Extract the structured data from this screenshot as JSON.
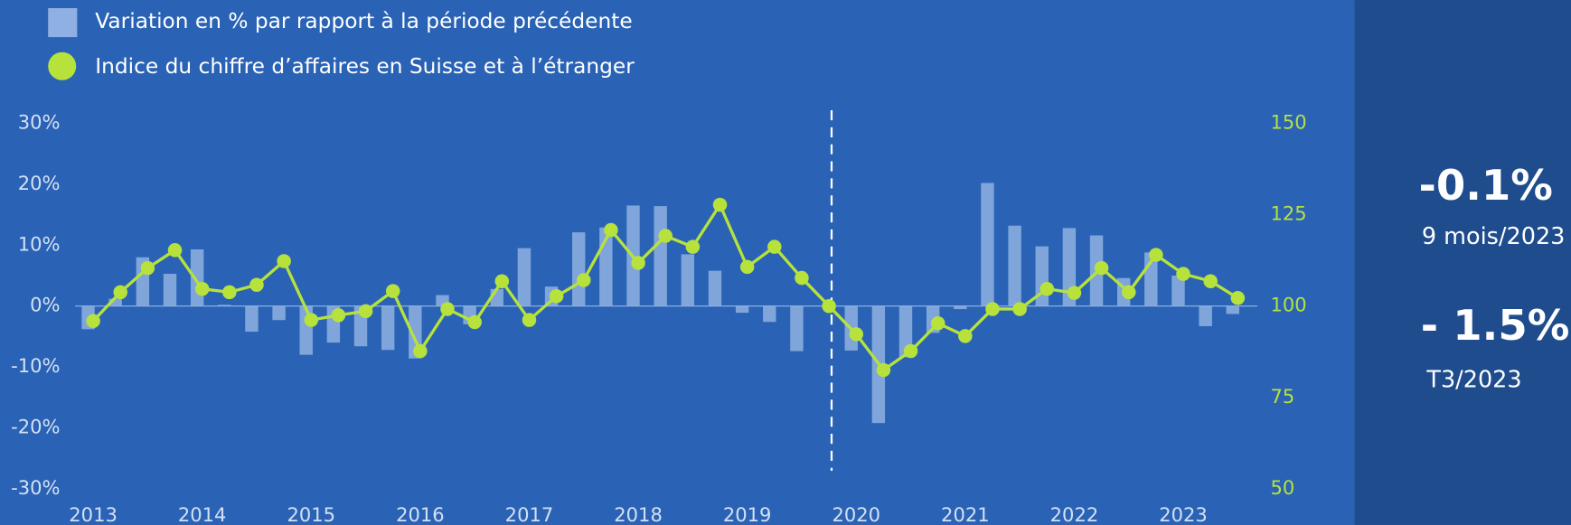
{
  "chart_data": {
    "type": "bar_line",
    "categories": [
      "2013",
      null,
      null,
      null,
      "2014",
      null,
      null,
      null,
      "2015",
      null,
      null,
      null,
      "2016",
      null,
      null,
      null,
      "2017",
      null,
      null,
      null,
      "2018",
      null,
      null,
      null,
      "2019",
      null,
      null,
      null,
      "2020",
      null,
      null,
      null,
      "2021",
      null,
      null,
      null,
      "2022",
      null,
      null,
      null,
      "2023",
      null,
      null
    ],
    "series": [
      {
        "name": "Variation en % par rapport à la période précédente",
        "type": "bar",
        "axis": "y",
        "color": "#8eb0e2",
        "values": [
          -3.8,
          1.2,
          8,
          5.3,
          9.3,
          0.2,
          -4.2,
          -2.3,
          -8,
          -6,
          -6.6,
          -7.2,
          -8.6,
          1.8,
          -3,
          2.8,
          9.5,
          3.2,
          12.1,
          12.9,
          16.5,
          16.4,
          8.5,
          5.8,
          -1.1,
          -2.6,
          -7.4,
          0,
          -7.3,
          -19.2,
          -8.4,
          -4.4,
          -0.5,
          20.2,
          13.2,
          9.8,
          12.8,
          11.6,
          4.6,
          8.8,
          5,
          -3.3,
          -1.3
        ]
      },
      {
        "name": "Indice du chiffre d’affaires en Suisse et à l’étranger",
        "type": "line",
        "axis": "y2",
        "color": "#b7e23c",
        "values": [
          95.9,
          103.8,
          110.4,
          115.3,
          104.7,
          103.8,
          105.8,
          112.3,
          96.2,
          97.5,
          98.6,
          104.1,
          87.7,
          99.2,
          95.6,
          106.8,
          96.2,
          102.7,
          107.1,
          120.8,
          111.8,
          119.2,
          116.2,
          127.7,
          110.7,
          116.2,
          107.7,
          100,
          92.3,
          82.5,
          87.7,
          95.3,
          91.8,
          99.2,
          99.2,
          104.7,
          103.6,
          110.4,
          103.8,
          114,
          108.8,
          106.8,
          102.2
        ]
      }
    ],
    "ylim": [
      -30,
      30
    ],
    "yticks": [
      {
        "value": 30,
        "label": "30%"
      },
      {
        "value": 20,
        "label": "20%"
      },
      {
        "value": 10,
        "label": "10%"
      },
      {
        "value": 0,
        "label": "0%"
      },
      {
        "value": -10,
        "label": "-10%"
      },
      {
        "value": -20,
        "label": "-20%"
      },
      {
        "value": -30,
        "label": "-30%"
      }
    ],
    "y2lim": [
      50,
      150
    ],
    "y2ticks": [
      150,
      125,
      100,
      75,
      50
    ],
    "legend": "top-left",
    "annotations": [
      {
        "value": "-0.1%",
        "label": "9 mois/2023"
      },
      {
        "value": "- 1.5%",
        "label": "T3/2023"
      }
    ]
  }
}
